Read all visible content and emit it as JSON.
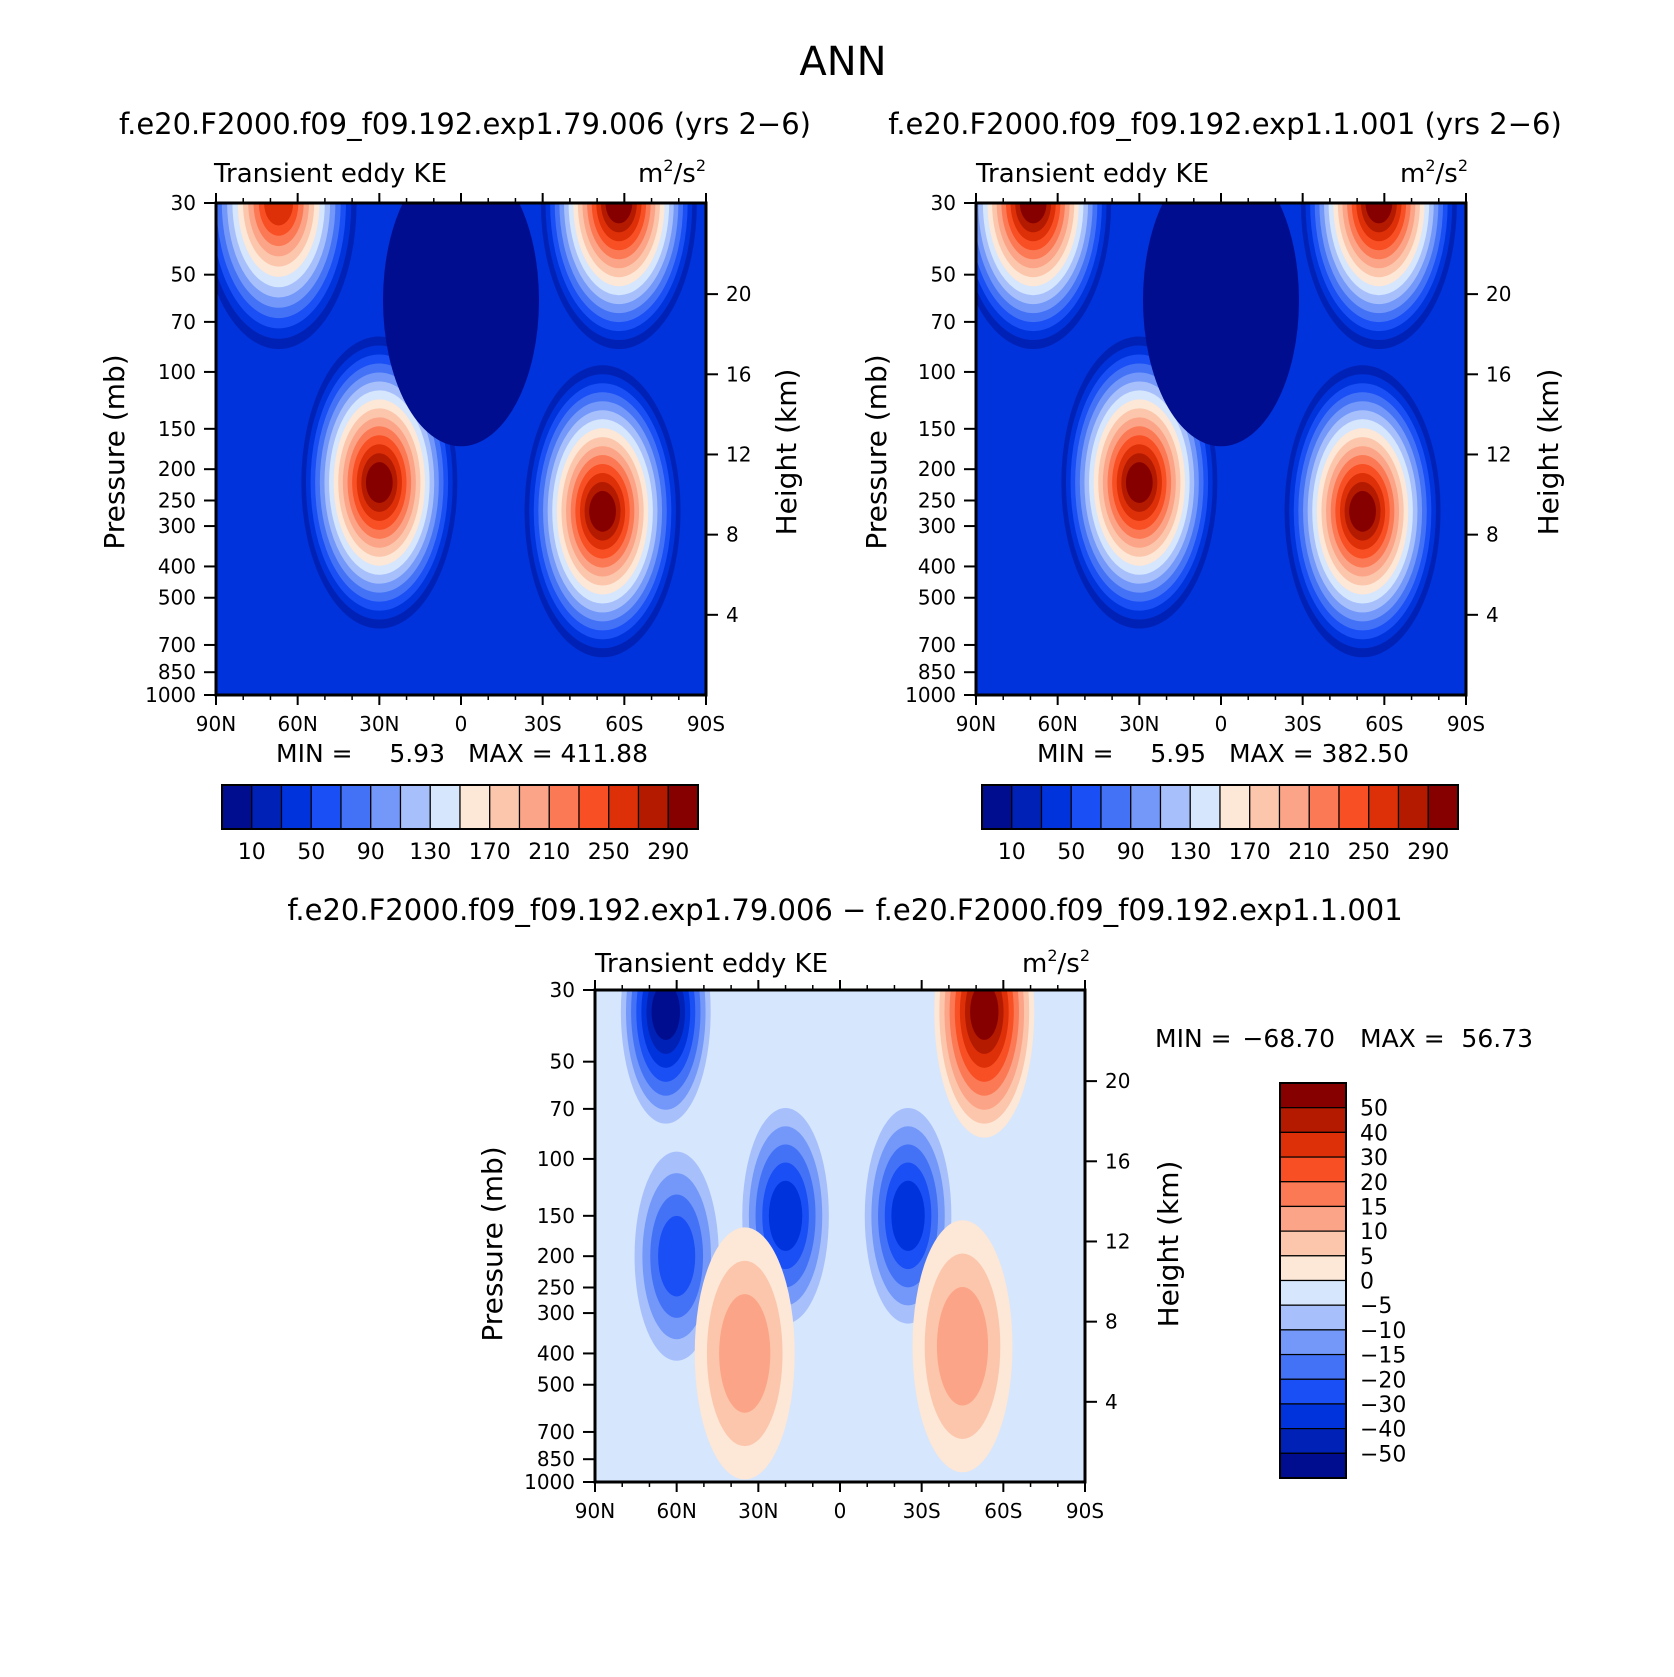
{
  "figure_title": "ANN",
  "colors": {
    "ke_palette": [
      "#000d8f",
      "#0021b6",
      "#0033db",
      "#1a4ff5",
      "#4472f7",
      "#7398f9",
      "#a7c0fb",
      "#d6e6fd",
      "#fde7d6",
      "#fcc6ac",
      "#fca487",
      "#fb7a55",
      "#f84f25",
      "#dd3008",
      "#b41a00",
      "#870000"
    ],
    "diff_palette": [
      "#000d8f",
      "#0021b6",
      "#0033db",
      "#1a4ff5",
      "#4472f7",
      "#7398f9",
      "#a7c0fb",
      "#d6e6fd",
      "#fde7d6",
      "#fcc6ac",
      "#fca487",
      "#fb7a55",
      "#f84f25",
      "#dd3008",
      "#b41a00",
      "#870000"
    ]
  },
  "chart_data": [
    {
      "type": "heatmap",
      "title": "f.e20.F2000.f09_f09.192.exp1.79.006 (yrs 2−6)",
      "left_string": "Transient eddy KE",
      "units": [
        "m",
        "2",
        "/s",
        "2"
      ],
      "xlabel": "",
      "ylabel": "Pressure (mb)",
      "y2label": "Height (km)",
      "x_ticks": [
        "90N",
        "60N",
        "30N",
        "0",
        "30S",
        "60S",
        "90S"
      ],
      "y_ticks": [
        "30",
        "50",
        "70",
        "100",
        "150",
        "200",
        "250",
        "300",
        "400",
        "500",
        "700",
        "850",
        "1000"
      ],
      "y2_ticks": [
        "20",
        "16",
        "12",
        "8",
        "4"
      ],
      "x_range": [
        90,
        -90
      ],
      "y_range": [
        1000,
        30
      ],
      "y_scale": "log",
      "min_label": "MIN =",
      "min_value": "5.93",
      "max_label": "MAX =",
      "max_value": "411.88",
      "levels": [
        10,
        30,
        50,
        70,
        90,
        110,
        130,
        150,
        170,
        190,
        210,
        230,
        250,
        270,
        290
      ],
      "colorbar_labels": [
        "10",
        "50",
        "90",
        "130",
        "170",
        "210",
        "250",
        "290"
      ],
      "features": [
        {
          "lat": 30,
          "p": 220,
          "value": 300
        },
        {
          "lat": -52,
          "p": 270,
          "value": 290
        },
        {
          "lat": 67,
          "p": 30,
          "value": 250
        },
        {
          "lat": -58,
          "p": 30,
          "value": 411.88
        },
        {
          "lat": 0,
          "p": 60,
          "value": 5.93
        }
      ]
    },
    {
      "type": "heatmap",
      "title": "f.e20.F2000.f09_f09.192.exp1.1.001 (yrs 2−6)",
      "left_string": "Transient eddy KE",
      "units": [
        "m",
        "2",
        "/s",
        "2"
      ],
      "xlabel": "",
      "ylabel": "Pressure (mb)",
      "y2label": "Height (km)",
      "x_ticks": [
        "90N",
        "60N",
        "30N",
        "0",
        "30S",
        "60S",
        "90S"
      ],
      "y_ticks": [
        "30",
        "50",
        "70",
        "100",
        "150",
        "200",
        "250",
        "300",
        "400",
        "500",
        "700",
        "850",
        "1000"
      ],
      "y2_ticks": [
        "20",
        "16",
        "12",
        "8",
        "4"
      ],
      "x_range": [
        90,
        -90
      ],
      "y_range": [
        1000,
        30
      ],
      "y_scale": "log",
      "min_label": "MIN =",
      "min_value": "5.95",
      "max_label": "MAX =",
      "max_value": "382.50",
      "levels": [
        10,
        30,
        50,
        70,
        90,
        110,
        130,
        150,
        170,
        190,
        210,
        230,
        250,
        270,
        290
      ],
      "colorbar_labels": [
        "10",
        "50",
        "90",
        "130",
        "170",
        "210",
        "250",
        "290"
      ],
      "features": [
        {
          "lat": 30,
          "p": 220,
          "value": 310
        },
        {
          "lat": -52,
          "p": 270,
          "value": 300
        },
        {
          "lat": 69,
          "p": 30,
          "value": 300
        },
        {
          "lat": -58,
          "p": 30,
          "value": 382.5
        },
        {
          "lat": 0,
          "p": 60,
          "value": 5.95
        }
      ]
    },
    {
      "type": "heatmap",
      "title": "f.e20.F2000.f09_f09.192.exp1.79.006 − f.e20.F2000.f09_f09.192.exp1.1.001",
      "left_string": "Transient eddy KE",
      "units": [
        "m",
        "2",
        "/s",
        "2"
      ],
      "xlabel": "",
      "ylabel": "Pressure (mb)",
      "y2label": "Height (km)",
      "x_ticks": [
        "90N",
        "60N",
        "30N",
        "0",
        "30S",
        "60S",
        "90S"
      ],
      "y_ticks": [
        "30",
        "50",
        "70",
        "100",
        "150",
        "200",
        "250",
        "300",
        "400",
        "500",
        "700",
        "850",
        "1000"
      ],
      "y2_ticks": [
        "20",
        "16",
        "12",
        "8",
        "4"
      ],
      "x_range": [
        90,
        -90
      ],
      "y_range": [
        1000,
        30
      ],
      "y_scale": "log",
      "min_label": "MIN =",
      "min_value": "−68.70",
      "max_label": "MAX =",
      "max_value": "56.73",
      "levels": [
        -50,
        -40,
        -30,
        -20,
        -15,
        -10,
        -5,
        0,
        5,
        10,
        15,
        20,
        30,
        40,
        50
      ],
      "colorbar_labels": [
        "50",
        "40",
        "30",
        "20",
        "15",
        "10",
        "5",
        "0",
        "−5",
        "−10",
        "−15",
        "−20",
        "−30",
        "−40",
        "−50"
      ],
      "features": [
        {
          "lat": 64,
          "p": 35,
          "value": -68.7
        },
        {
          "lat": -53,
          "p": 35,
          "value": 56.73
        },
        {
          "lat": 20,
          "p": 150,
          "value": -35
        },
        {
          "lat": -25,
          "p": 150,
          "value": -35
        },
        {
          "lat": 60,
          "p": 200,
          "value": -30
        },
        {
          "lat": -45,
          "p": 380,
          "value": 12
        },
        {
          "lat": 35,
          "p": 400,
          "value": 12
        }
      ]
    }
  ]
}
